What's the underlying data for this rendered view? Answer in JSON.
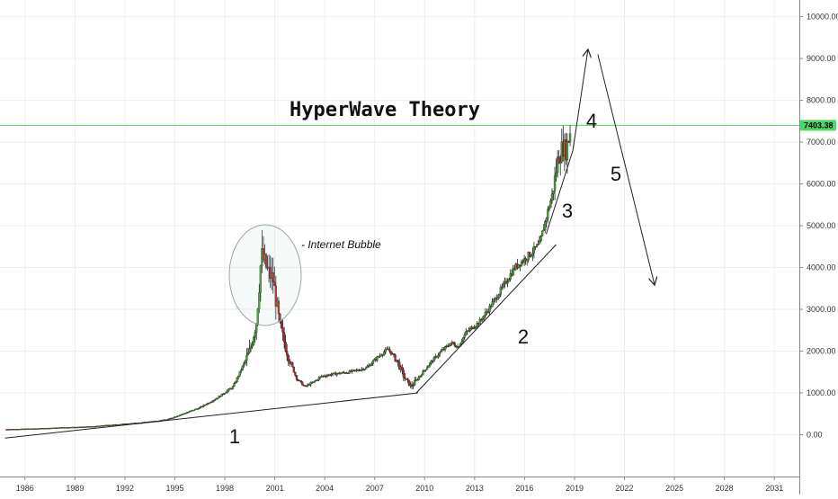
{
  "chart_data": {
    "type": "candlestick",
    "title": "HyperWave Theory",
    "x_ticks": [
      "1986",
      "1989",
      "1992",
      "1995",
      "1998",
      "2001",
      "2004",
      "2007",
      "2010",
      "2013",
      "2016",
      "2019",
      "2022",
      "2025",
      "2028",
      "2031"
    ],
    "y_ticks": [
      "10000.00",
      "9000.00",
      "8000.00",
      "7000.00",
      "6000.00",
      "5000.00",
      "4000.00",
      "3000.00",
      "2000.00",
      "1000.00",
      "0.00"
    ],
    "ylim": [
      -1000,
      10400
    ],
    "xlim": [
      1984.5,
      2032.5
    ],
    "grid": true,
    "current_price": {
      "label": "7403.38",
      "value": 7403.38,
      "line_color": "#4cd964",
      "tag_color": "#4cd964"
    },
    "candle_colors": {
      "up": "#4a9a3a",
      "down": "#b5262f",
      "wick": "#222222"
    },
    "series_path": [
      [
        1984.9,
        130
      ],
      [
        1986.0,
        140
      ],
      [
        1987.5,
        160
      ],
      [
        1988.0,
        170
      ],
      [
        1990.0,
        195
      ],
      [
        1991.0,
        230
      ],
      [
        1993.0,
        290
      ],
      [
        1994.5,
        360
      ],
      [
        1995.5,
        500
      ],
      [
        1996.5,
        650
      ],
      [
        1997.5,
        870
      ],
      [
        1998.5,
        1150
      ],
      [
        1999.5,
        2000
      ],
      [
        1999.9,
        2700
      ],
      [
        2000.2,
        4300
      ],
      [
        2000.6,
        3900
      ],
      [
        2000.9,
        3700
      ],
      [
        2001.3,
        2600
      ],
      [
        2001.8,
        1900
      ],
      [
        2002.3,
        1350
      ],
      [
        2002.8,
        1150
      ],
      [
        2003.3,
        1250
      ],
      [
        2003.8,
        1400
      ],
      [
        2004.5,
        1450
      ],
      [
        2005.5,
        1500
      ],
      [
        2006.5,
        1600
      ],
      [
        2007.3,
        1900
      ],
      [
        2007.8,
        2050
      ],
      [
        2008.3,
        1800
      ],
      [
        2008.8,
        1350
      ],
      [
        2009.2,
        1150
      ],
      [
        2009.6,
        1350
      ],
      [
        2010.3,
        1700
      ],
      [
        2011.0,
        2000
      ],
      [
        2011.6,
        2200
      ],
      [
        2012.0,
        2100
      ],
      [
        2012.5,
        2450
      ],
      [
        2013.3,
        2700
      ],
      [
        2014.0,
        3100
      ],
      [
        2014.8,
        3600
      ],
      [
        2015.4,
        4000
      ],
      [
        2016.0,
        4200
      ],
      [
        2016.4,
        4350
      ],
      [
        2016.9,
        4550
      ],
      [
        2017.3,
        5200
      ],
      [
        2017.7,
        5800
      ],
      [
        2018.0,
        6600
      ],
      [
        2018.3,
        6900
      ],
      [
        2018.5,
        6800
      ],
      [
        2018.8,
        7400
      ]
    ],
    "bubble_segment": [
      1999.3,
      2001.9
    ]
  },
  "annotations": {
    "bubble_label": "- Internet Bubble",
    "wave_1": "1",
    "wave_2": "2",
    "wave_3": "3",
    "wave_4": "4",
    "wave_5": "5"
  },
  "trendlines": [
    {
      "name": "wave-1-line",
      "from": [
        1984.8,
        -80
      ],
      "to": [
        2009.6,
        1000
      ]
    },
    {
      "name": "wave-2-line",
      "from": [
        2009.5,
        1000
      ],
      "to": [
        2017.9,
        4550
      ]
    },
    {
      "name": "wave-3-line",
      "from": [
        2017.3,
        4800
      ],
      "to": [
        2018.9,
        6800
      ]
    },
    {
      "name": "wave-4-line",
      "from": [
        2018.9,
        6800
      ],
      "to": [
        2019.8,
        9200
      ],
      "arrow": true
    },
    {
      "name": "wave-5-line",
      "from": [
        2020.4,
        9100
      ],
      "to": [
        2023.8,
        3600
      ],
      "arrow": true
    }
  ]
}
